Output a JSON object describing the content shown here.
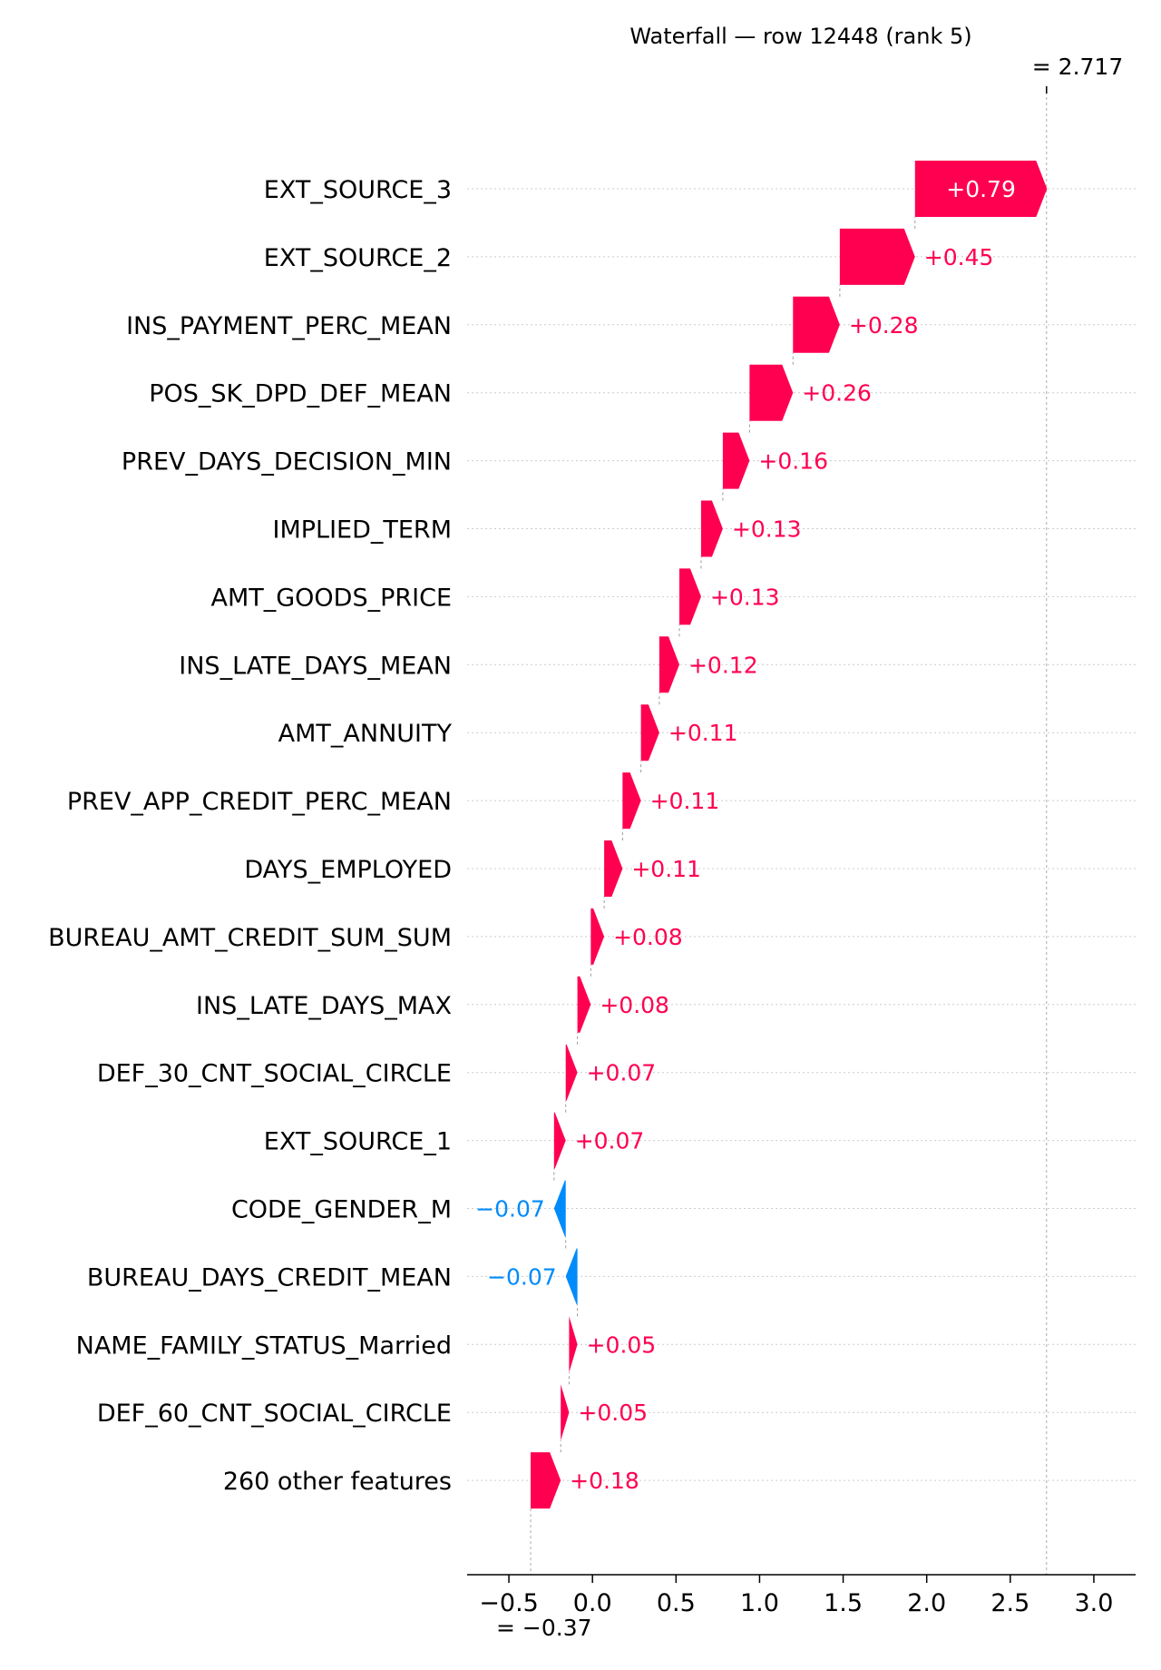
{
  "chart_data": {
    "type": "waterfall",
    "title": "Waterfall — row 12448 (rank 5)",
    "base_value": -0.37,
    "base_value_label": "= −0.37",
    "final_value": 2.717,
    "final_value_label": "= 2.717",
    "xlim": [
      -0.75,
      3.25
    ],
    "x_ticks": [
      -0.5,
      0.0,
      0.5,
      1.0,
      1.5,
      2.0,
      2.5,
      3.0
    ],
    "x_tick_labels": [
      "−0.5",
      "0.0",
      "0.5",
      "1.0",
      "1.5",
      "2.0",
      "2.5",
      "3.0"
    ],
    "features": [
      {
        "name": "EXT_SOURCE_3",
        "value": 0.79,
        "label": "+0.79"
      },
      {
        "name": "EXT_SOURCE_2",
        "value": 0.45,
        "label": "+0.45"
      },
      {
        "name": "INS_PAYMENT_PERC_MEAN",
        "value": 0.28,
        "label": "+0.28"
      },
      {
        "name": "POS_SK_DPD_DEF_MEAN",
        "value": 0.26,
        "label": "+0.26"
      },
      {
        "name": "PREV_DAYS_DECISION_MIN",
        "value": 0.16,
        "label": "+0.16"
      },
      {
        "name": "IMPLIED_TERM",
        "value": 0.13,
        "label": "+0.13"
      },
      {
        "name": "AMT_GOODS_PRICE",
        "value": 0.13,
        "label": "+0.13"
      },
      {
        "name": "INS_LATE_DAYS_MEAN",
        "value": 0.12,
        "label": "+0.12"
      },
      {
        "name": "AMT_ANNUITY",
        "value": 0.11,
        "label": "+0.11"
      },
      {
        "name": "PREV_APP_CREDIT_PERC_MEAN",
        "value": 0.11,
        "label": "+0.11"
      },
      {
        "name": "DAYS_EMPLOYED",
        "value": 0.11,
        "label": "+0.11"
      },
      {
        "name": "BUREAU_AMT_CREDIT_SUM_SUM",
        "value": 0.08,
        "label": "+0.08"
      },
      {
        "name": "INS_LATE_DAYS_MAX",
        "value": 0.08,
        "label": "+0.08"
      },
      {
        "name": "DEF_30_CNT_SOCIAL_CIRCLE",
        "value": 0.07,
        "label": "+0.07"
      },
      {
        "name": "EXT_SOURCE_1",
        "value": 0.07,
        "label": "+0.07"
      },
      {
        "name": "CODE_GENDER_M",
        "value": -0.07,
        "label": "−0.07"
      },
      {
        "name": "BUREAU_DAYS_CREDIT_MEAN",
        "value": -0.07,
        "label": "−0.07"
      },
      {
        "name": "NAME_FAMILY_STATUS_Married",
        "value": 0.05,
        "label": "+0.05"
      },
      {
        "name": "DEF_60_CNT_SOCIAL_CIRCLE",
        "value": 0.05,
        "label": "+0.05"
      },
      {
        "name": "260 other features",
        "value": 0.18,
        "label": "+0.18"
      }
    ],
    "colors": {
      "positive": "#ff0051",
      "negative": "#008bfb",
      "gridline": "#cccccc",
      "axis": "#000000"
    }
  }
}
